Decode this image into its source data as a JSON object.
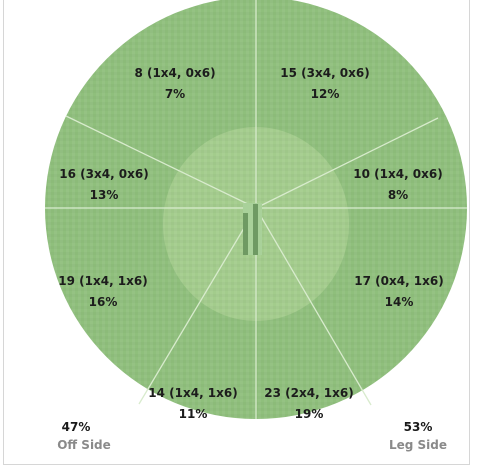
{
  "wagon_wheel": {
    "colors": {
      "field": "#8fbf7c",
      "field_edge": "#86b872",
      "inner_circle": "#a3cc8c",
      "pitch": "#6f9a63",
      "divider": "#d8ebcd"
    },
    "segments": [
      {
        "line1": "8 (1x4, 0x6)",
        "line2": "7%"
      },
      {
        "line1": "15 (3x4, 0x6)",
        "line2": "12%"
      },
      {
        "line1": "10 (1x4, 0x6)",
        "line2": "8%"
      },
      {
        "line1": "17 (0x4, 1x6)",
        "line2": "14%"
      },
      {
        "line1": "23 (2x4, 1x6)",
        "line2": "19%"
      },
      {
        "line1": "14 (1x4, 1x6)",
        "line2": "11%"
      },
      {
        "line1": "19 (1x4, 1x6)",
        "line2": "16%"
      },
      {
        "line1": "16 (3x4, 0x6)",
        "line2": "13%"
      }
    ],
    "off_side": {
      "pct": "47%",
      "label": "Off Side"
    },
    "leg_side": {
      "pct": "53%",
      "label": "Leg Side"
    }
  }
}
